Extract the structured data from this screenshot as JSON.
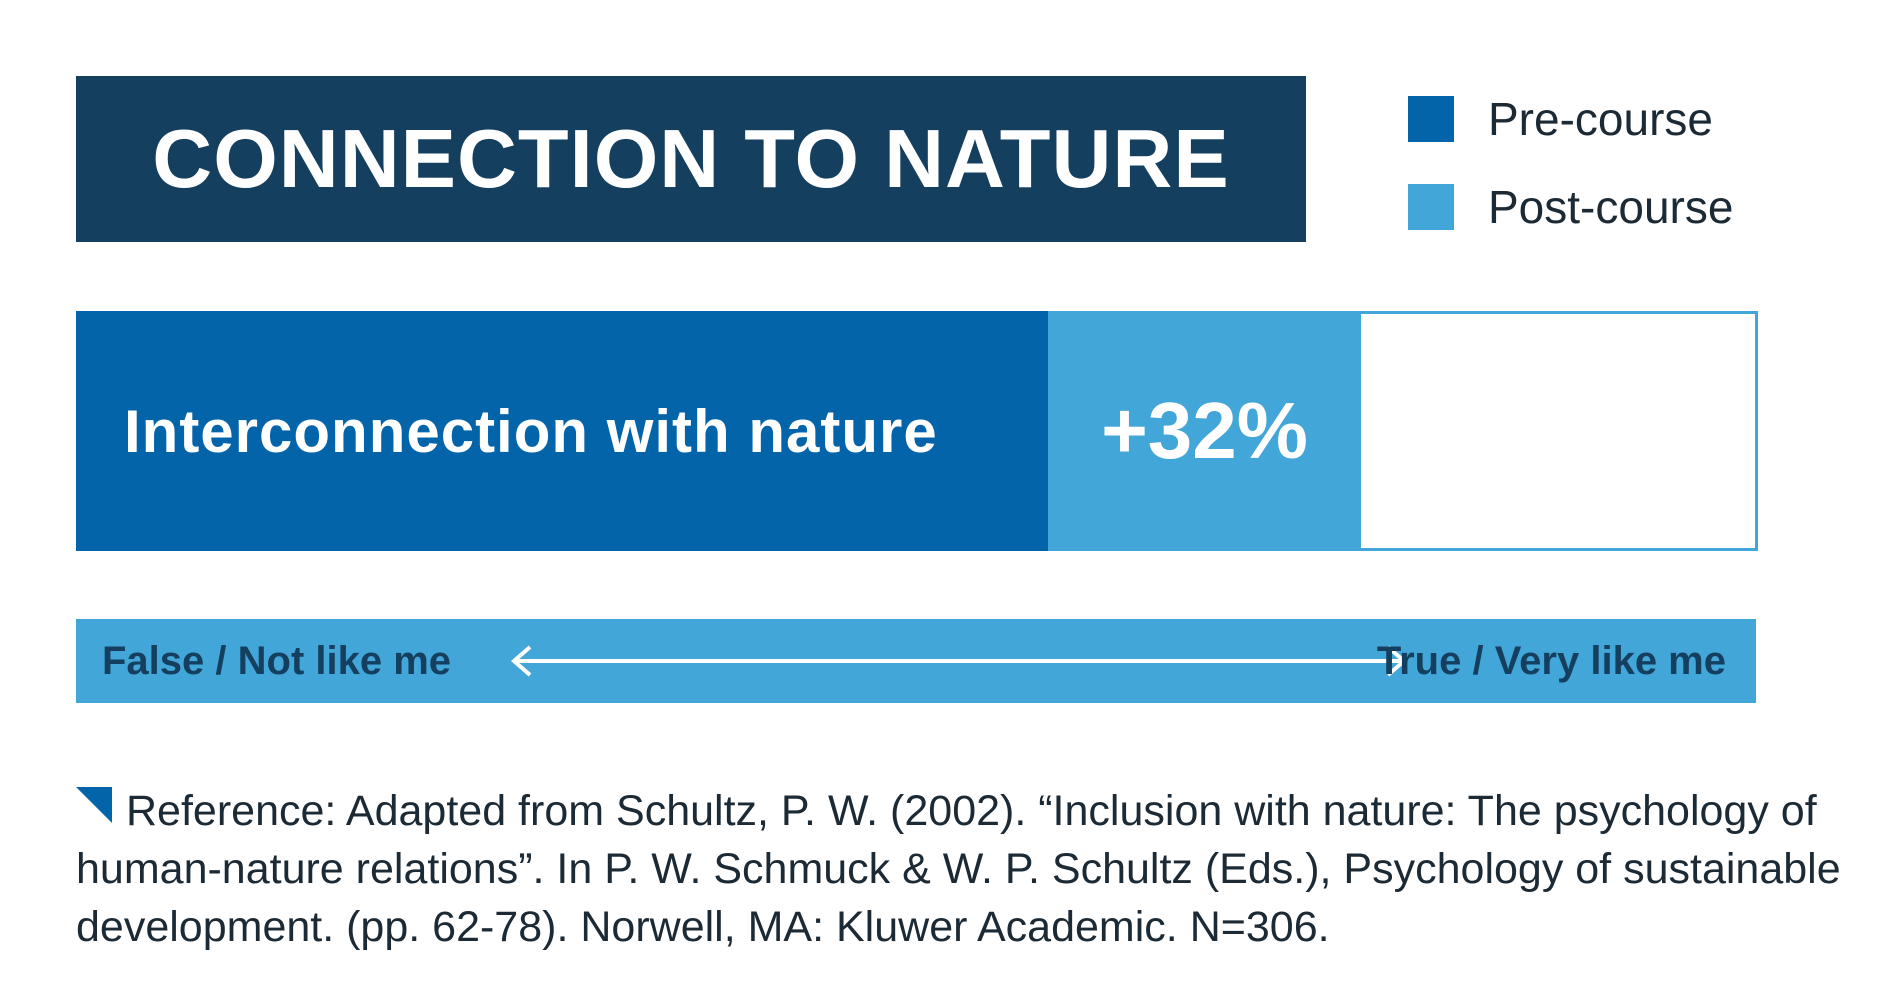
{
  "chart_data": {
    "type": "bar",
    "title": "CONNECTION TO NATURE",
    "categories": [
      "Interconnection with nature"
    ],
    "series": [
      {
        "name": "Pre-course",
        "color": "#0464aa"
      },
      {
        "name": "Post-course",
        "color": "#43a6d9"
      }
    ],
    "annotations": [
      "+32%"
    ],
    "scale": {
      "left_label": "False / Not like me",
      "right_label": "True / Very like me"
    }
  },
  "legend": {
    "items": [
      {
        "label": "Pre-course",
        "color": "#0464aa"
      },
      {
        "label": "Post-course",
        "color": "#43a6d9"
      }
    ]
  },
  "reference": {
    "icon": "corner-triangle-icon",
    "text": "Reference: Adapted from Schultz, P. W. (2002). “Inclusion with nature: The psychology of human-nature relations”. In P. W. Schmuck & W. P. Schultz (Eds.), Psychology of sustainable development. (pp. 62-78). Norwell, MA: Kluwer Academic. N=306."
  },
  "colors": {
    "title_bg": "#143f5f",
    "pre": "#0464aa",
    "post": "#43a6d9",
    "scale_text": "#143f5f"
  }
}
